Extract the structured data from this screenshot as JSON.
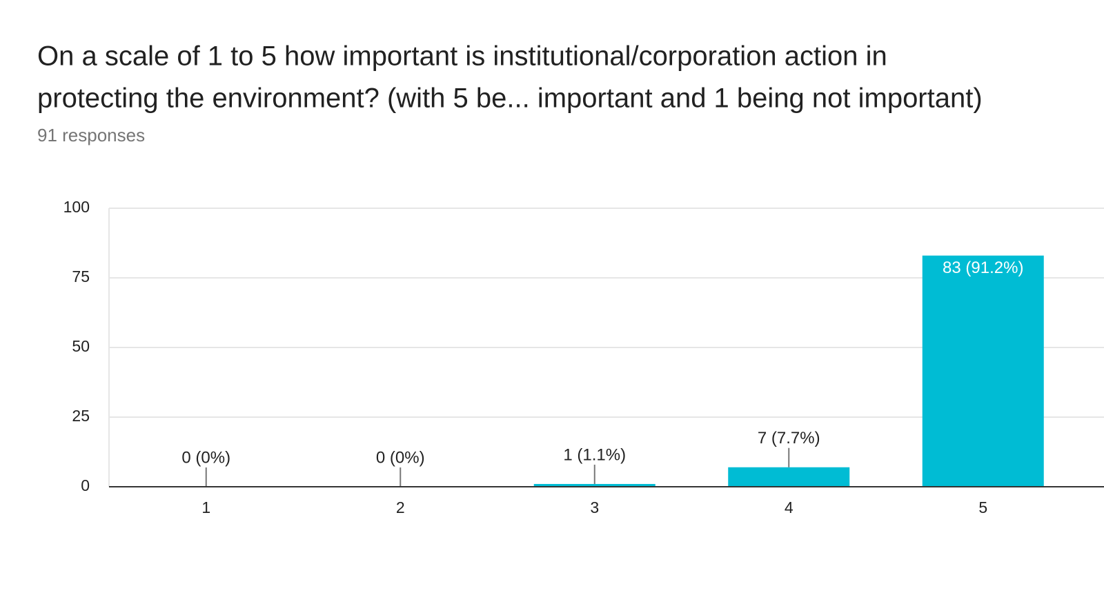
{
  "chart_data": {
    "type": "bar",
    "title": [
      "On a scale of 1 to 5 how important is institutional/corporation action in",
      "protecting the environment? (with 5 be... important and 1 being not important)"
    ],
    "subtitle": "91 responses",
    "categories": [
      "1",
      "2",
      "3",
      "4",
      "5"
    ],
    "values": [
      0,
      0,
      1,
      7,
      83
    ],
    "value_labels": [
      "0 (0%)",
      "0 (0%)",
      "1 (1.1%)",
      "7 (7.7%)",
      "83 (91.2%)"
    ],
    "color": "#00bcd4",
    "ylim": [
      0,
      100
    ],
    "yticks": [
      0,
      25,
      50,
      75,
      100
    ],
    "grid": true
  }
}
